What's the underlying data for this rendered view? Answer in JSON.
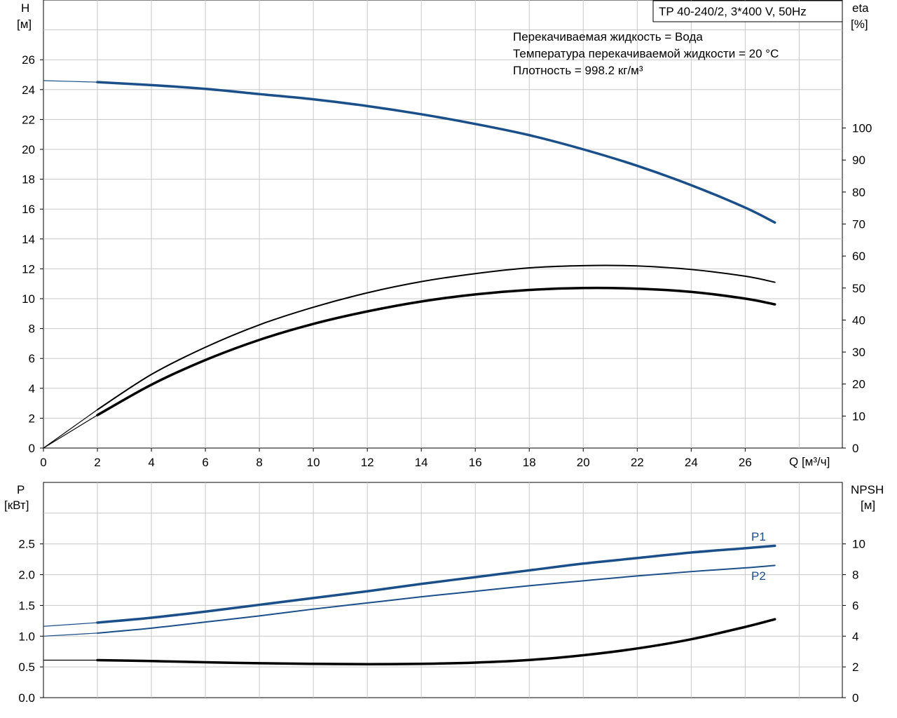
{
  "chart_data": [
    {
      "type": "line",
      "id": "head_efficiency",
      "title": "TP 40-240/2, 3*400 V, 50Hz",
      "xlabel": "Q [м³/ч]",
      "ylabel_left": [
        "H",
        "[м]"
      ],
      "ylabel_right": [
        "eta",
        "[%]"
      ],
      "xlim": [
        0,
        29.6
      ],
      "ylim": [
        0,
        30
      ],
      "y2lim": [
        0,
        140
      ],
      "xticks": [
        0,
        2,
        4,
        6,
        8,
        10,
        12,
        14,
        16,
        18,
        20,
        22,
        24,
        26
      ],
      "yticks": [
        0,
        2,
        4,
        6,
        8,
        10,
        12,
        14,
        16,
        18,
        20,
        22,
        24,
        26
      ],
      "y2ticks": [
        0,
        10,
        20,
        30,
        40,
        50,
        60,
        70,
        80,
        90,
        100
      ],
      "grid": true,
      "info_lines": [
        "Перекачиваемая жидкость = Вода",
        "Температура перекачиваемой жидкости = 20 °C",
        "Плотность = 998.2 кг/м³"
      ],
      "series": [
        {
          "axis": "left",
          "color": "#1a4f8a",
          "width": 3.5,
          "dashed_from_zero": true,
          "points": [
            [
              0,
              24.6
            ],
            [
              2,
              24.5
            ],
            [
              4,
              24.3
            ],
            [
              6,
              24.05
            ],
            [
              8,
              23.7
            ],
            [
              10,
              23.35
            ],
            [
              12,
              22.9
            ],
            [
              14,
              22.35
            ],
            [
              16,
              21.7
            ],
            [
              18,
              20.95
            ],
            [
              20,
              20.0
            ],
            [
              22,
              18.9
            ],
            [
              24,
              17.6
            ],
            [
              26,
              16.1
            ],
            [
              27.1,
              15.1
            ]
          ]
        },
        {
          "axis": "right",
          "color": "#000000",
          "width": 2,
          "dashed_from_zero": true,
          "points": [
            [
              0,
              0
            ],
            [
              2,
              12
            ],
            [
              4,
              23
            ],
            [
              6,
              31.5
            ],
            [
              8,
              38.5
            ],
            [
              10,
              44
            ],
            [
              12,
              48.5
            ],
            [
              14,
              52
            ],
            [
              16,
              54.5
            ],
            [
              18,
              56.3
            ],
            [
              20,
              57
            ],
            [
              22,
              56.9
            ],
            [
              24,
              55.8
            ],
            [
              26,
              53.7
            ],
            [
              27.1,
              51.8
            ]
          ]
        },
        {
          "axis": "right",
          "color": "#000000",
          "width": 3.5,
          "dashed_from_zero": true,
          "points": [
            [
              0,
              0
            ],
            [
              2,
              10.3
            ],
            [
              4,
              19.8
            ],
            [
              6,
              27.5
            ],
            [
              8,
              33.8
            ],
            [
              10,
              38.8
            ],
            [
              12,
              42.7
            ],
            [
              14,
              45.8
            ],
            [
              16,
              48
            ],
            [
              18,
              49.4
            ],
            [
              20,
              50
            ],
            [
              22,
              49.8
            ],
            [
              24,
              48.8
            ],
            [
              26,
              46.7
            ],
            [
              27.1,
              44.9
            ]
          ]
        }
      ]
    },
    {
      "type": "line",
      "id": "power_npsh",
      "xlim": [
        0,
        29.6
      ],
      "ylabel_left": [
        "P",
        "[кВт]"
      ],
      "ylabel_right": [
        "NPSH",
        "[м]"
      ],
      "ylim": [
        0,
        3.5
      ],
      "y2lim": [
        0,
        14
      ],
      "yticks": [
        0.0,
        0.5,
        1.0,
        1.5,
        2.0,
        2.5
      ],
      "ytick_labels": [
        "0.0",
        "0.5",
        "1.0",
        "1.5",
        "2.0",
        "2.5"
      ],
      "y2ticks": [
        0,
        2,
        4,
        6,
        8,
        10
      ],
      "grid": true,
      "series": [
        {
          "name": "P1",
          "axis": "left",
          "color": "#1a4f8a",
          "width": 3.5,
          "dashed_from_zero": true,
          "points": [
            [
              0,
              1.16
            ],
            [
              2,
              1.22
            ],
            [
              4,
              1.3
            ],
            [
              6,
              1.4
            ],
            [
              8,
              1.51
            ],
            [
              10,
              1.62
            ],
            [
              12,
              1.73
            ],
            [
              14,
              1.85
            ],
            [
              16,
              1.96
            ],
            [
              18,
              2.07
            ],
            [
              20,
              2.18
            ],
            [
              22,
              2.27
            ],
            [
              24,
              2.36
            ],
            [
              26,
              2.43
            ],
            [
              27.1,
              2.47
            ]
          ]
        },
        {
          "name": "P2",
          "axis": "left",
          "color": "#1a4f8a",
          "width": 2,
          "dashed_from_zero": true,
          "points": [
            [
              0,
              1.0
            ],
            [
              2,
              1.05
            ],
            [
              4,
              1.13
            ],
            [
              6,
              1.23
            ],
            [
              8,
              1.33
            ],
            [
              10,
              1.44
            ],
            [
              12,
              1.54
            ],
            [
              14,
              1.64
            ],
            [
              16,
              1.73
            ],
            [
              18,
              1.82
            ],
            [
              20,
              1.9
            ],
            [
              22,
              1.98
            ],
            [
              24,
              2.05
            ],
            [
              26,
              2.11
            ],
            [
              27.1,
              2.15
            ]
          ]
        },
        {
          "name": "",
          "axis": "right",
          "color": "#000000",
          "width": 3.5,
          "dashed_from_zero": true,
          "points": [
            [
              0,
              2.44
            ],
            [
              2,
              2.44
            ],
            [
              4,
              2.38
            ],
            [
              6,
              2.3
            ],
            [
              8,
              2.24
            ],
            [
              10,
              2.2
            ],
            [
              12,
              2.18
            ],
            [
              14,
              2.2
            ],
            [
              16,
              2.28
            ],
            [
              18,
              2.45
            ],
            [
              20,
              2.76
            ],
            [
              22,
              3.2
            ],
            [
              24,
              3.8
            ],
            [
              26,
              4.6
            ],
            [
              27.1,
              5.1
            ]
          ]
        }
      ]
    }
  ]
}
